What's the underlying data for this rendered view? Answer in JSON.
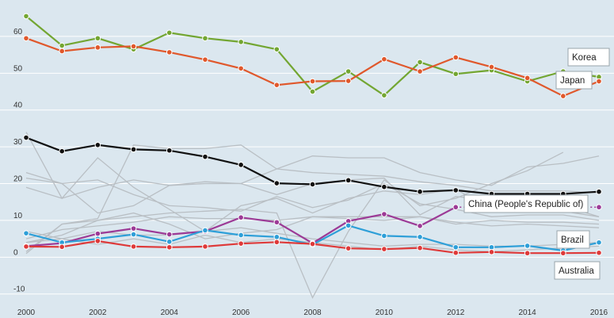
{
  "colors": {
    "background": "#dbe7ef",
    "grid": "#ffffff",
    "context_series": "#b9bfc4",
    "Korea": "#73a632",
    "Japan": "#e0582c",
    "OECD_black_series": "#111111",
    "China (People's Republic of)": "#9c3a96",
    "Brazil": "#2e9fd8",
    "Australia": "#de3a3a"
  },
  "chart_data": {
    "type": "line",
    "title": "",
    "xlabel": "",
    "ylabel": "",
    "x": [
      2000,
      2001,
      2002,
      2003,
      2004,
      2005,
      2006,
      2007,
      2008,
      2009,
      2010,
      2011,
      2012,
      2013,
      2014,
      2015,
      2016
    ],
    "x_ticks": [
      2000,
      2002,
      2004,
      2006,
      2008,
      2010,
      2012,
      2014,
      2016
    ],
    "xlim": [
      2000,
      2016
    ],
    "ylim": [
      -12,
      68
    ],
    "y_ticks": [
      -10,
      0,
      10,
      20,
      30,
      40,
      50,
      60
    ],
    "grid": "horizontal",
    "legend": "inline labels at right end of lines",
    "series": [
      {
        "name": "Korea",
        "color": "#73a632",
        "values": [
          65.5,
          57.5,
          59.5,
          56.5,
          61,
          59.5,
          58.5,
          56.5,
          45,
          50.5,
          44,
          53,
          49.8,
          50.8,
          47.8,
          50.5,
          49
        ]
      },
      {
        "name": "Japan",
        "color": "#e0582c",
        "values": [
          59.5,
          56,
          57,
          57.3,
          55.7,
          53.7,
          51.3,
          46.8,
          47.8,
          47.9,
          53.8,
          50.5,
          54.3,
          51.7,
          48.7,
          43.8,
          47.8
        ]
      },
      {
        "color": "#111111",
        "values": [
          32.5,
          28.8,
          30.5,
          29.3,
          29,
          27.3,
          25.1,
          20.1,
          19.8,
          20.9,
          19.1,
          17.8,
          18.2,
          17.2,
          17.2,
          17.2,
          17.8
        ]
      },
      {
        "name": "China (People's Republic of)",
        "color": "#9c3a96",
        "values": [
          3,
          3.8,
          6.4,
          7.8,
          6.2,
          7,
          10.8,
          9.5,
          3.8,
          9.8,
          11.7,
          8.5,
          13.6,
          null,
          null,
          null,
          13.6
        ]
      },
      {
        "name": "Brazil",
        "color": "#2e9fd8",
        "values": [
          6.5,
          4,
          5,
          6.2,
          4.2,
          7.3,
          6,
          5.5,
          3.4,
          8.6,
          5.8,
          5.5,
          2.7,
          2.7,
          3.1,
          1.8,
          4
        ]
      },
      {
        "name": "Australia",
        "color": "#de3a3a",
        "values": [
          2.9,
          2.8,
          4.4,
          2.9,
          2.7,
          2.9,
          3.7,
          4.1,
          3.6,
          2.4,
          2.2,
          2.5,
          1.2,
          1.4,
          1.1,
          1.1,
          1.2
        ]
      }
    ],
    "context_series": [
      [
        34,
        16,
        27,
        19,
        13,
        7,
        14,
        16,
        12,
        16,
        18,
        17,
        18.5,
        13,
        14.5,
        12.5,
        11
      ],
      [
        23,
        20,
        12,
        14,
        19.5,
        20.5,
        20,
        17,
        20,
        21,
        21.5,
        11.5,
        16.5,
        15.5,
        13,
        14,
        11
      ],
      [
        19,
        16,
        19,
        21,
        19.5,
        20,
        20,
        24,
        27.5,
        27,
        27,
        23,
        21,
        19.5,
        24.5,
        25.5,
        27.5
      ],
      [
        21.5,
        20,
        21,
        17,
        14,
        13.5,
        12.5,
        16.5,
        13.5,
        15.5,
        20,
        14.5,
        13,
        11,
        11.5,
        11.5,
        10
      ],
      [
        1,
        9,
        10,
        11,
        12,
        12.5,
        13,
        12,
        -11,
        7,
        21,
        14,
        16,
        20,
        23.5,
        28.5,
        null
      ],
      [
        4,
        6,
        10,
        12,
        9,
        5,
        6.5,
        7.5,
        11,
        11,
        11,
        11,
        9.5,
        8.5,
        9,
        8.5,
        8
      ],
      [
        7,
        5,
        7,
        6,
        6,
        7,
        8,
        6.5,
        5,
        4,
        3,
        3.5,
        3.5,
        3,
        3,
        3.5,
        4
      ],
      [
        1.5,
        9,
        10.5,
        30.5,
        29.5,
        29.5,
        30.5,
        24,
        23,
        22.5,
        22,
        20.5,
        19.5,
        18,
        18,
        18,
        17.5
      ],
      [
        5,
        7.5,
        8.5,
        9.5,
        11,
        10.5,
        10.5,
        10,
        11,
        10.5,
        10,
        11,
        9,
        10,
        9.5,
        9.5,
        9
      ],
      [
        4,
        5,
        3.5,
        5,
        3.5,
        6,
        4,
        5,
        4,
        3,
        2,
        3,
        2,
        1.5,
        2,
        2.5,
        3
      ]
    ]
  },
  "labels": {
    "korea": "Korea",
    "japan": "Japan",
    "china": "China (People's Republic of)",
    "brazil": "Brazil",
    "australia": "Australia"
  }
}
